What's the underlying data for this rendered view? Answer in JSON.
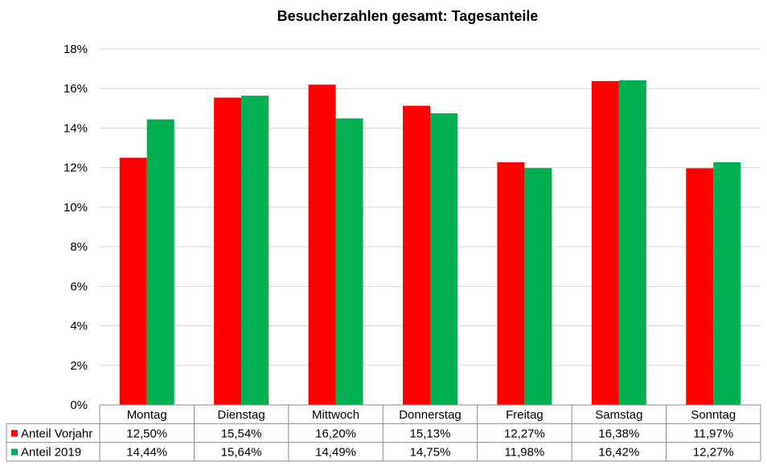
{
  "chart_data": {
    "type": "bar",
    "title": "Besucherzahlen gesamt: Tagesanteile",
    "categories": [
      "Montag",
      "Dienstag",
      "Mittwoch",
      "Donnerstag",
      "Freitag",
      "Samstag",
      "Sonntag"
    ],
    "series": [
      {
        "name": "Anteil Vorjahr",
        "color": "#ff0000",
        "values": [
          12.5,
          15.54,
          16.2,
          15.13,
          12.27,
          16.38,
          11.97
        ],
        "labels": [
          "12,50%",
          "15,54%",
          "16,20%",
          "15,13%",
          "12,27%",
          "16,38%",
          "11,97%"
        ]
      },
      {
        "name": "Anteil 2019",
        "color": "#00b050",
        "values": [
          14.44,
          15.64,
          14.49,
          14.75,
          11.98,
          16.42,
          12.27
        ],
        "labels": [
          "14,44%",
          "15,64%",
          "14,49%",
          "14,75%",
          "11,98%",
          "16,42%",
          "12,27%"
        ]
      }
    ],
    "ylim": [
      0,
      18
    ],
    "yticks": [
      "0%",
      "2%",
      "4%",
      "6%",
      "8%",
      "10%",
      "12%",
      "14%",
      "16%",
      "18%"
    ],
    "ytick_values": [
      0,
      2,
      4,
      6,
      8,
      10,
      12,
      14,
      16,
      18
    ],
    "grid": true,
    "legend": "data-table-below"
  }
}
